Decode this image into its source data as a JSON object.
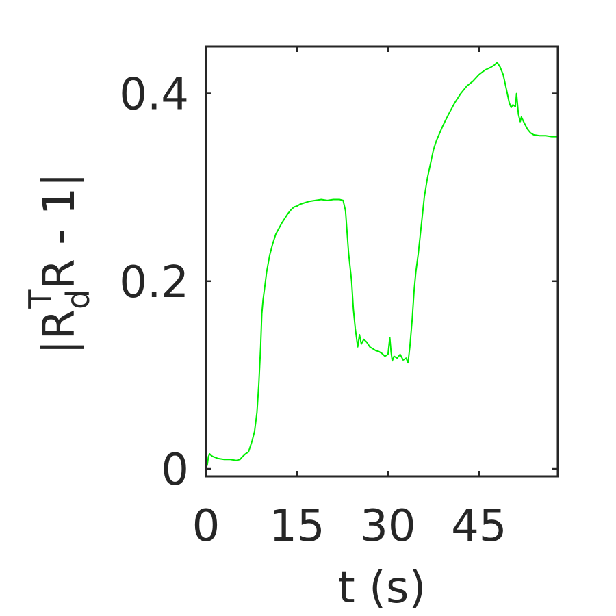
{
  "chart_data": {
    "type": "line",
    "title": "",
    "xlabel": "t (s)",
    "ylabel": {
      "prefix": "|R",
      "subscript": "d",
      "superscript": "T",
      "suffix": "R - 1|"
    },
    "xlim": [
      0,
      58
    ],
    "ylim": [
      -0.008,
      0.45
    ],
    "xticks": [
      0,
      15,
      30,
      45
    ],
    "xtick_labels": [
      "0",
      "15",
      "30",
      "45"
    ],
    "yticks": [
      0,
      0.2,
      0.4
    ],
    "ytick_labels": [
      "0",
      "0.2",
      "0.4"
    ],
    "grid": false,
    "legend": "none",
    "series": [
      {
        "color": "#00ee00",
        "x": [
          0,
          0.2,
          0.4,
          0.6,
          0.9,
          1.2,
          1.6,
          2.0,
          3.0,
          4.0,
          5.0,
          5.6,
          6.0,
          6.5,
          7.0,
          7.2,
          7.6,
          8.0,
          8.4,
          8.7,
          9.0,
          9.2,
          9.4,
          9.7,
          10.0,
          10.5,
          11.0,
          11.5,
          12.0,
          12.5,
          13.0,
          13.5,
          14.0,
          14.5,
          15.0,
          15.5,
          16.0,
          17.0,
          18.0,
          19.0,
          20.0,
          21.0,
          22.0,
          22.6,
          23.0,
          23.5,
          24.0,
          24.3,
          24.6,
          25.0,
          25.3,
          25.6,
          26.0,
          26.5,
          27.0,
          27.5,
          28.0,
          28.5,
          29.0,
          29.5,
          30.0,
          30.3,
          30.5,
          30.7,
          31.0,
          31.5,
          32.0,
          32.5,
          33.0,
          33.3,
          33.6,
          34.0,
          34.3,
          34.6,
          35.0,
          35.5,
          36.0,
          36.5,
          37.0,
          37.5,
          38.0,
          39.0,
          40.0,
          41.0,
          42.0,
          43.0,
          44.0,
          45.0,
          46.0,
          47.0,
          47.5,
          48.0,
          48.5,
          49.0,
          49.5,
          50.0,
          50.3,
          50.6,
          51.0,
          51.2,
          51.5,
          51.8,
          52.0,
          52.5,
          53.0,
          53.5,
          54.0,
          55.0,
          56.0,
          57.0,
          58.0
        ],
        "y": [
          0.002,
          0.004,
          0.013,
          0.016,
          0.014,
          0.013,
          0.012,
          0.011,
          0.01,
          0.01,
          0.009,
          0.01,
          0.013,
          0.016,
          0.018,
          0.022,
          0.03,
          0.04,
          0.06,
          0.09,
          0.13,
          0.165,
          0.18,
          0.195,
          0.21,
          0.228,
          0.24,
          0.25,
          0.256,
          0.262,
          0.267,
          0.272,
          0.276,
          0.279,
          0.28,
          0.282,
          0.283,
          0.285,
          0.286,
          0.287,
          0.286,
          0.287,
          0.287,
          0.286,
          0.275,
          0.23,
          0.2,
          0.17,
          0.15,
          0.13,
          0.143,
          0.133,
          0.138,
          0.135,
          0.13,
          0.128,
          0.126,
          0.125,
          0.123,
          0.12,
          0.122,
          0.14,
          0.125,
          0.115,
          0.12,
          0.118,
          0.122,
          0.116,
          0.118,
          0.113,
          0.13,
          0.16,
          0.19,
          0.21,
          0.23,
          0.26,
          0.29,
          0.31,
          0.325,
          0.34,
          0.35,
          0.365,
          0.378,
          0.39,
          0.4,
          0.408,
          0.413,
          0.42,
          0.425,
          0.428,
          0.43,
          0.433,
          0.428,
          0.42,
          0.405,
          0.39,
          0.385,
          0.388,
          0.386,
          0.4,
          0.378,
          0.37,
          0.375,
          0.368,
          0.362,
          0.358,
          0.356,
          0.355,
          0.355,
          0.354,
          0.354
        ]
      }
    ]
  }
}
